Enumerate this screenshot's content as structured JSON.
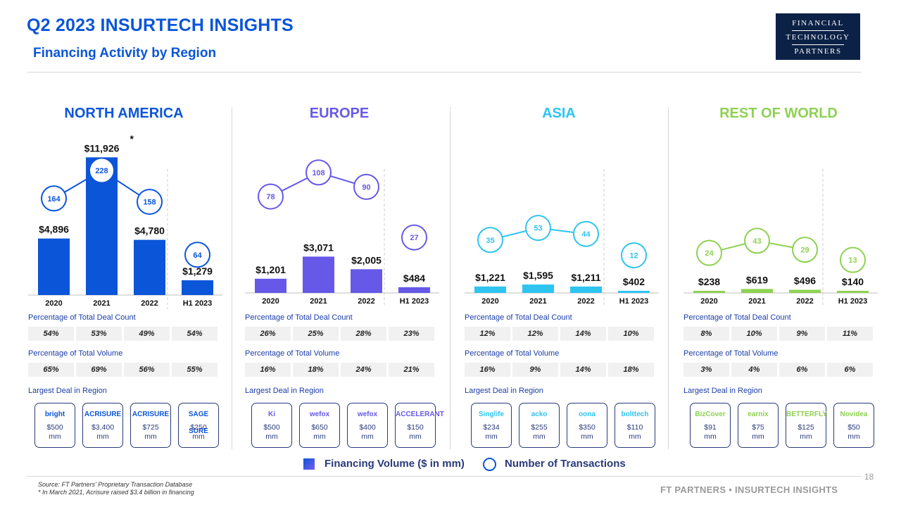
{
  "header": {
    "title": "Q2 2023 INSURTECH INSIGHTS",
    "subtitle": "Financing Activity by Region",
    "logo_lines": [
      "FINANCIAL",
      "TECHNOLOGY",
      "PARTNERS"
    ]
  },
  "labels": {
    "deal_count": "Percentage of Total Deal Count",
    "volume": "Percentage of Total Volume",
    "largest_deal": "Largest Deal in Region",
    "mm": "mm"
  },
  "legend": {
    "volume": "Financing Volume ($ in mm)",
    "transactions": "Number of Transactions"
  },
  "footer": {
    "source": "Source: FT Partners' Proprietary Transaction Database",
    "note": "* In March 2021, Acrisure raised $3.4 billion in financing",
    "brand": "FT PARTNERS • INSURTECH INSIGHTS",
    "page": "18"
  },
  "chart_data": [
    {
      "type": "bar",
      "title": "NORTH AMERICA",
      "color": "#0b55d9",
      "categories": [
        "2020",
        "2021",
        "2022",
        "H1 2023"
      ],
      "series": [
        {
          "name": "Financing Volume ($ in mm)",
          "values": [
            4896,
            11926,
            4780,
            1279
          ],
          "labels": [
            "$4,896",
            "$11,926",
            "$4,780",
            "$1,279"
          ]
        },
        {
          "name": "Number of Transactions",
          "values": [
            164,
            228,
            158,
            64
          ]
        }
      ],
      "annotation": "*",
      "deal_count_pct": [
        "54%",
        "53%",
        "49%",
        "54%"
      ],
      "volume_pct": [
        "65%",
        "69%",
        "56%",
        "55%"
      ],
      "largest_deals": [
        {
          "company": "bright",
          "amount": "$500"
        },
        {
          "company": "ACRISURE",
          "amount": "$3,400"
        },
        {
          "company": "ACRISURE",
          "amount": "$725"
        },
        {
          "company": "SAGE SURE",
          "amount": "$250"
        }
      ]
    },
    {
      "type": "bar",
      "title": "EUROPE",
      "color": "#6659e8",
      "categories": [
        "2020",
        "2021",
        "2022",
        "H1 2023"
      ],
      "series": [
        {
          "name": "Financing Volume ($ in mm)",
          "values": [
            1201,
            3071,
            2005,
            484
          ],
          "labels": [
            "$1,201",
            "$3,071",
            "$2,005",
            "$484"
          ]
        },
        {
          "name": "Number of Transactions",
          "values": [
            78,
            108,
            90,
            27
          ]
        }
      ],
      "deal_count_pct": [
        "26%",
        "25%",
        "28%",
        "23%"
      ],
      "volume_pct": [
        "16%",
        "18%",
        "24%",
        "21%"
      ],
      "largest_deals": [
        {
          "company": "Ki",
          "amount": "$500"
        },
        {
          "company": "wefox",
          "amount": "$650"
        },
        {
          "company": "wefox",
          "amount": "$400"
        },
        {
          "company": "ACCELERANT",
          "amount": "$150"
        }
      ]
    },
    {
      "type": "bar",
      "title": "ASIA",
      "color": "#2ec4f0",
      "categories": [
        "2020",
        "2021",
        "2022",
        "H1 2023"
      ],
      "series": [
        {
          "name": "Financing Volume ($ in mm)",
          "values": [
            1221,
            1595,
            1211,
            402
          ],
          "labels": [
            "$1,221",
            "$1,595",
            "$1,211",
            "$402"
          ]
        },
        {
          "name": "Number of Transactions",
          "values": [
            35,
            53,
            44,
            12
          ]
        }
      ],
      "deal_count_pct": [
        "12%",
        "12%",
        "14%",
        "10%"
      ],
      "volume_pct": [
        "16%",
        "9%",
        "14%",
        "18%"
      ],
      "largest_deals": [
        {
          "company": "Singlife",
          "amount": "$234"
        },
        {
          "company": "acko",
          "amount": "$255"
        },
        {
          "company": "oona",
          "amount": "$350"
        },
        {
          "company": "bolttech",
          "amount": "$110"
        }
      ]
    },
    {
      "type": "bar",
      "title": "REST OF WORLD",
      "color": "#8ed152",
      "categories": [
        "2020",
        "2021",
        "2022",
        "H1 2023"
      ],
      "series": [
        {
          "name": "Financing Volume ($ in mm)",
          "values": [
            238,
            619,
            496,
            140
          ],
          "labels": [
            "$238",
            "$619",
            "$496",
            "$140"
          ]
        },
        {
          "name": "Number of Transactions",
          "values": [
            24,
            43,
            29,
            13
          ]
        }
      ],
      "deal_count_pct": [
        "8%",
        "10%",
        "9%",
        "11%"
      ],
      "volume_pct": [
        "3%",
        "4%",
        "6%",
        "6%"
      ],
      "largest_deals": [
        {
          "company": "BizCover",
          "amount": "$91"
        },
        {
          "company": "earnix",
          "amount": "$75"
        },
        {
          "company": "BETTERFLY",
          "amount": "$125"
        },
        {
          "company": "Novidea",
          "amount": "$50"
        }
      ]
    }
  ]
}
